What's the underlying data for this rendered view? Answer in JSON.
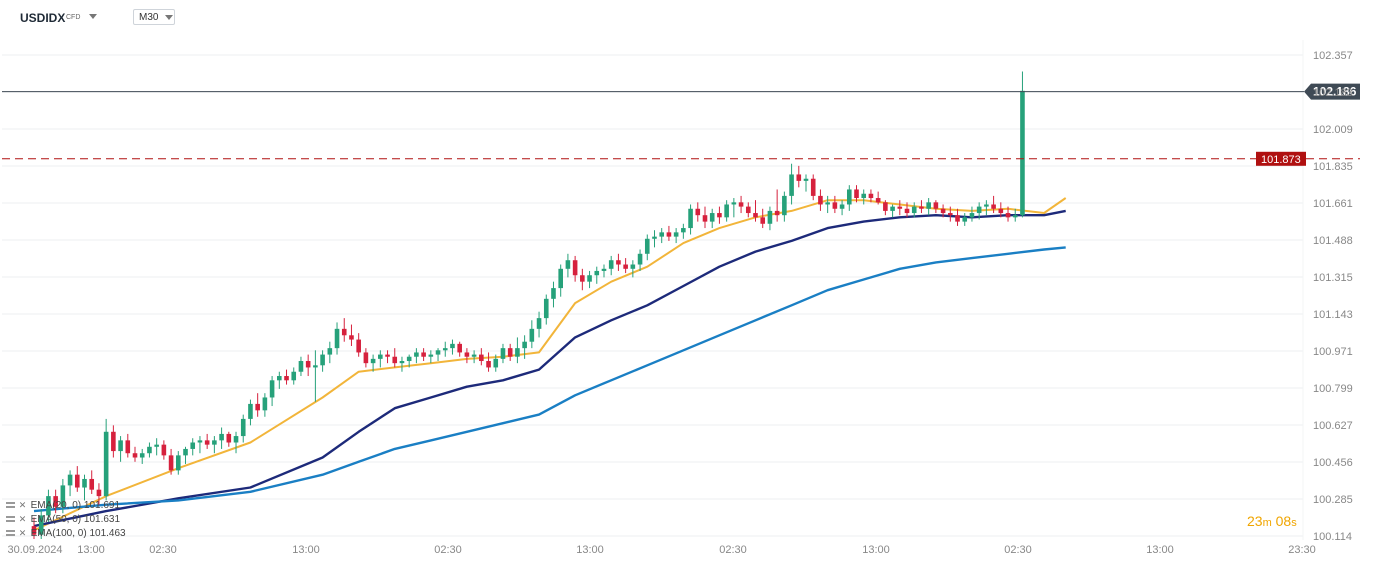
{
  "header": {
    "symbol": "USDIDX",
    "symbol_type": "CFD",
    "timeframe": "M30"
  },
  "timer": {
    "minutes": "23",
    "min_unit": "m",
    "seconds": "08",
    "sec_unit": "s"
  },
  "legend": [
    {
      "text": "EMA(20, 0) 101.691",
      "color": "#f2b53a"
    },
    {
      "text": "EMA(50, 0) 101.631",
      "color": "#1d2a7a"
    },
    {
      "text": "EMA(100, 0) 101.463",
      "color": "#1a7fc4"
    }
  ],
  "colors": {
    "up": "#26a17a",
    "down": "#d6213d",
    "grid": "#eceff2",
    "axis_text": "#888888",
    "last_price_bg": "#3f4a55",
    "level_bg": "#b01010"
  },
  "chart_data": {
    "type": "candlestick",
    "title": "",
    "ylim": [
      100.114,
      102.357
    ],
    "y_ticks": [
      "102.357",
      "102.183",
      "102.009",
      "101.835",
      "101.661",
      "101.488",
      "101.315",
      "101.143",
      "100.971",
      "100.799",
      "100.627",
      "100.456",
      "100.285",
      "100.114"
    ],
    "x_ticks": [
      "30.09.2024",
      "13:00",
      "02:30",
      "13:00",
      "02:30",
      "13:00",
      "02:30",
      "13:00",
      "02:30",
      "13:00",
      "23:30"
    ],
    "last_price": 102.186,
    "horizontal_level": 101.873,
    "candles_ohlc": [
      [
        100.16,
        100.2,
        100.1,
        100.12
      ],
      [
        100.12,
        100.24,
        100.1,
        100.21
      ],
      [
        100.21,
        100.33,
        100.18,
        100.3
      ],
      [
        100.3,
        100.33,
        100.22,
        100.25
      ],
      [
        100.25,
        100.38,
        100.22,
        100.35
      ],
      [
        100.35,
        100.42,
        100.3,
        100.4
      ],
      [
        100.4,
        100.44,
        100.32,
        100.34
      ],
      [
        100.34,
        100.4,
        100.28,
        100.38
      ],
      [
        100.38,
        100.42,
        100.31,
        100.33
      ],
      [
        100.33,
        100.36,
        100.26,
        100.3
      ],
      [
        100.3,
        100.66,
        100.28,
        100.6
      ],
      [
        100.6,
        100.63,
        100.48,
        100.51
      ],
      [
        100.51,
        100.58,
        100.46,
        100.56
      ],
      [
        100.56,
        100.59,
        100.48,
        100.5
      ],
      [
        100.5,
        100.53,
        100.46,
        100.48
      ],
      [
        100.48,
        100.52,
        100.45,
        100.5
      ],
      [
        100.5,
        100.55,
        100.48,
        100.53
      ],
      [
        100.53,
        100.57,
        100.49,
        100.54
      ],
      [
        100.54,
        100.56,
        100.47,
        100.49
      ],
      [
        100.49,
        100.52,
        100.4,
        100.42
      ],
      [
        100.42,
        100.51,
        100.4,
        100.49
      ],
      [
        100.49,
        100.53,
        100.45,
        100.52
      ],
      [
        100.52,
        100.57,
        100.49,
        100.55
      ],
      [
        100.55,
        100.58,
        100.5,
        100.56
      ],
      [
        100.56,
        100.59,
        100.52,
        100.54
      ],
      [
        100.54,
        100.58,
        100.5,
        100.56
      ],
      [
        100.56,
        100.62,
        100.52,
        100.59
      ],
      [
        100.59,
        100.6,
        100.53,
        100.55
      ],
      [
        100.55,
        100.6,
        100.5,
        100.58
      ],
      [
        100.58,
        100.68,
        100.55,
        100.66
      ],
      [
        100.66,
        100.75,
        100.63,
        100.73
      ],
      [
        100.73,
        100.78,
        100.67,
        100.7
      ],
      [
        100.7,
        100.78,
        100.67,
        100.76
      ],
      [
        100.76,
        100.86,
        100.72,
        100.84
      ],
      [
        100.84,
        100.88,
        100.8,
        100.86
      ],
      [
        100.86,
        100.89,
        100.82,
        100.84
      ],
      [
        100.84,
        100.9,
        100.82,
        100.88
      ],
      [
        100.88,
        100.95,
        100.86,
        100.93
      ],
      [
        100.93,
        100.96,
        100.86,
        100.9
      ],
      [
        100.9,
        100.98,
        100.74,
        100.91
      ],
      [
        100.91,
        100.98,
        100.88,
        100.96
      ],
      [
        100.96,
        101.02,
        100.92,
        100.99
      ],
      [
        100.99,
        101.11,
        100.96,
        101.08
      ],
      [
        101.08,
        101.13,
        101.02,
        101.05
      ],
      [
        101.05,
        101.1,
        101.0,
        101.03
      ],
      [
        101.03,
        101.06,
        100.95,
        100.97
      ],
      [
        100.97,
        100.99,
        100.9,
        100.92
      ],
      [
        100.92,
        100.96,
        100.88,
        100.94
      ],
      [
        100.94,
        100.98,
        100.9,
        100.96
      ],
      [
        100.96,
        100.98,
        100.92,
        100.95
      ],
      [
        100.95,
        100.99,
        100.9,
        100.92
      ],
      [
        100.92,
        100.95,
        100.88,
        100.93
      ],
      [
        100.93,
        100.96,
        100.9,
        100.95
      ],
      [
        100.95,
        100.99,
        100.92,
        100.97
      ],
      [
        100.97,
        100.99,
        100.93,
        100.95
      ],
      [
        100.95,
        100.98,
        100.92,
        100.96
      ],
      [
        100.96,
        100.99,
        100.93,
        100.98
      ],
      [
        100.98,
        101.02,
        100.95,
        100.99
      ],
      [
        100.99,
        101.03,
        100.96,
        101.01
      ],
      [
        101.01,
        101.02,
        100.95,
        100.97
      ],
      [
        100.97,
        100.99,
        100.92,
        100.95
      ],
      [
        100.95,
        100.98,
        100.92,
        100.96
      ],
      [
        100.96,
        100.99,
        100.91,
        100.93
      ],
      [
        100.93,
        100.97,
        100.88,
        100.9
      ],
      [
        100.9,
        100.96,
        100.88,
        100.94
      ],
      [
        100.94,
        101.01,
        100.92,
        100.99
      ],
      [
        100.99,
        101.01,
        100.93,
        100.95
      ],
      [
        100.95,
        101.04,
        100.92,
        100.99
      ],
      [
        100.99,
        101.05,
        100.94,
        101.02
      ],
      [
        101.02,
        101.12,
        100.99,
        101.08
      ],
      [
        101.08,
        101.16,
        101.04,
        101.13
      ],
      [
        101.13,
        101.24,
        101.1,
        101.22
      ],
      [
        101.22,
        101.3,
        101.18,
        101.27
      ],
      [
        101.27,
        101.38,
        101.23,
        101.36
      ],
      [
        101.36,
        101.43,
        101.32,
        101.4
      ],
      [
        101.4,
        101.42,
        101.3,
        101.33
      ],
      [
        101.33,
        101.36,
        101.26,
        101.3
      ],
      [
        101.3,
        101.35,
        101.27,
        101.33
      ],
      [
        101.33,
        101.37,
        101.29,
        101.35
      ],
      [
        101.35,
        101.38,
        101.32,
        101.36
      ],
      [
        101.36,
        101.42,
        101.33,
        101.4
      ],
      [
        101.4,
        101.43,
        101.35,
        101.38
      ],
      [
        101.38,
        101.41,
        101.34,
        101.36
      ],
      [
        101.36,
        101.4,
        101.32,
        101.38
      ],
      [
        101.38,
        101.45,
        101.35,
        101.43
      ],
      [
        101.43,
        101.52,
        101.4,
        101.5
      ],
      [
        101.5,
        101.54,
        101.46,
        101.51
      ],
      [
        101.51,
        101.55,
        101.48,
        101.53
      ],
      [
        101.53,
        101.56,
        101.49,
        101.51
      ],
      [
        101.51,
        101.55,
        101.48,
        101.53
      ],
      [
        101.53,
        101.57,
        101.5,
        101.55
      ],
      [
        101.55,
        101.66,
        101.52,
        101.64
      ],
      [
        101.64,
        101.67,
        101.58,
        101.61
      ],
      [
        101.61,
        101.65,
        101.55,
        101.58
      ],
      [
        101.58,
        101.64,
        101.55,
        101.62
      ],
      [
        101.62,
        101.65,
        101.57,
        101.6
      ],
      [
        101.6,
        101.68,
        101.58,
        101.66
      ],
      [
        101.66,
        101.69,
        101.6,
        101.67
      ],
      [
        101.67,
        101.7,
        101.62,
        101.65
      ],
      [
        101.65,
        101.67,
        101.6,
        101.62
      ],
      [
        101.62,
        101.68,
        101.58,
        101.6
      ],
      [
        101.6,
        101.64,
        101.55,
        101.57
      ],
      [
        101.57,
        101.65,
        101.54,
        101.63
      ],
      [
        101.63,
        101.73,
        101.58,
        101.61
      ],
      [
        101.61,
        101.72,
        101.58,
        101.7
      ],
      [
        101.7,
        101.85,
        101.66,
        101.8
      ],
      [
        101.8,
        101.84,
        101.74,
        101.77
      ],
      [
        101.77,
        101.8,
        101.72,
        101.78
      ],
      [
        101.78,
        101.8,
        101.68,
        101.7
      ],
      [
        101.7,
        101.73,
        101.63,
        101.66
      ],
      [
        101.66,
        101.7,
        101.62,
        101.67
      ],
      [
        101.67,
        101.7,
        101.62,
        101.64
      ],
      [
        101.64,
        101.68,
        101.61,
        101.66
      ],
      [
        101.66,
        101.75,
        101.63,
        101.73
      ],
      [
        101.73,
        101.75,
        101.67,
        101.69
      ],
      [
        101.69,
        101.73,
        101.66,
        101.71
      ],
      [
        101.71,
        101.73,
        101.67,
        101.69
      ],
      [
        101.69,
        101.72,
        101.66,
        101.67
      ],
      [
        101.67,
        101.68,
        101.61,
        101.63
      ],
      [
        101.63,
        101.66,
        101.6,
        101.65
      ],
      [
        101.65,
        101.68,
        101.61,
        101.64
      ],
      [
        101.64,
        101.67,
        101.6,
        101.62
      ],
      [
        101.62,
        101.67,
        101.6,
        101.65
      ],
      [
        101.65,
        101.68,
        101.62,
        101.64
      ],
      [
        101.64,
        101.69,
        101.61,
        101.67
      ],
      [
        101.67,
        101.68,
        101.62,
        101.64
      ],
      [
        101.64,
        101.66,
        101.6,
        101.62
      ],
      [
        101.62,
        101.65,
        101.58,
        101.61
      ],
      [
        101.61,
        101.64,
        101.56,
        101.58
      ],
      [
        101.58,
        101.62,
        101.56,
        101.6
      ],
      [
        101.6,
        101.65,
        101.58,
        101.62
      ],
      [
        101.62,
        101.67,
        101.59,
        101.65
      ],
      [
        101.65,
        101.68,
        101.61,
        101.66
      ],
      [
        101.66,
        101.7,
        101.62,
        101.64
      ],
      [
        101.64,
        101.67,
        101.6,
        101.62
      ],
      [
        101.62,
        101.65,
        101.58,
        101.6
      ],
      [
        101.6,
        101.64,
        101.58,
        101.61
      ],
      [
        101.61,
        102.28,
        101.6,
        102.19
      ]
    ],
    "series": [
      {
        "name": "EMA(20, 0)",
        "color": "#f2b53a",
        "points": [
          [
            0,
            100.14
          ],
          [
            10,
            100.3
          ],
          [
            20,
            100.43
          ],
          [
            30,
            100.55
          ],
          [
            40,
            100.76
          ],
          [
            45,
            100.88
          ],
          [
            50,
            100.9
          ],
          [
            55,
            100.92
          ],
          [
            60,
            100.94
          ],
          [
            65,
            100.95
          ],
          [
            70,
            100.97
          ],
          [
            75,
            101.2
          ],
          [
            80,
            101.3
          ],
          [
            85,
            101.37
          ],
          [
            90,
            101.48
          ],
          [
            95,
            101.55
          ],
          [
            100,
            101.6
          ],
          [
            105,
            101.63
          ],
          [
            110,
            101.68
          ],
          [
            115,
            101.68
          ],
          [
            120,
            101.66
          ],
          [
            125,
            101.64
          ],
          [
            130,
            101.63
          ],
          [
            135,
            101.64
          ],
          [
            140,
            101.62
          ],
          [
            143,
            101.69
          ]
        ]
      },
      {
        "name": "EMA(50, 0)",
        "color": "#1d2a7a",
        "points": [
          [
            0,
            100.16
          ],
          [
            10,
            100.23
          ],
          [
            20,
            100.29
          ],
          [
            30,
            100.34
          ],
          [
            40,
            100.48
          ],
          [
            45,
            100.6
          ],
          [
            50,
            100.71
          ],
          [
            55,
            100.76
          ],
          [
            60,
            100.81
          ],
          [
            65,
            100.84
          ],
          [
            70,
            100.89
          ],
          [
            75,
            101.04
          ],
          [
            80,
            101.12
          ],
          [
            85,
            101.19
          ],
          [
            90,
            101.28
          ],
          [
            95,
            101.37
          ],
          [
            100,
            101.44
          ],
          [
            105,
            101.49
          ],
          [
            110,
            101.55
          ],
          [
            115,
            101.58
          ],
          [
            120,
            101.6
          ],
          [
            125,
            101.61
          ],
          [
            130,
            101.6
          ],
          [
            135,
            101.61
          ],
          [
            140,
            101.61
          ],
          [
            143,
            101.63
          ]
        ]
      },
      {
        "name": "EMA(100, 0)",
        "color": "#1a7fc4",
        "points": [
          [
            0,
            100.23
          ],
          [
            10,
            100.26
          ],
          [
            20,
            100.28
          ],
          [
            30,
            100.32
          ],
          [
            40,
            100.4
          ],
          [
            45,
            100.46
          ],
          [
            50,
            100.52
          ],
          [
            55,
            100.56
          ],
          [
            60,
            100.6
          ],
          [
            65,
            100.64
          ],
          [
            70,
            100.68
          ],
          [
            75,
            100.77
          ],
          [
            80,
            100.84
          ],
          [
            85,
            100.91
          ],
          [
            90,
            100.98
          ],
          [
            95,
            101.05
          ],
          [
            100,
            101.12
          ],
          [
            105,
            101.19
          ],
          [
            110,
            101.26
          ],
          [
            115,
            101.31
          ],
          [
            120,
            101.36
          ],
          [
            125,
            101.39
          ],
          [
            130,
            101.41
          ],
          [
            135,
            101.43
          ],
          [
            140,
            101.45
          ],
          [
            143,
            101.46
          ]
        ]
      }
    ]
  }
}
